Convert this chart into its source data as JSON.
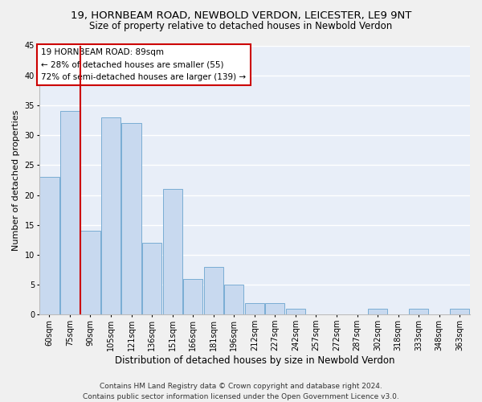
{
  "title1": "19, HORNBEAM ROAD, NEWBOLD VERDON, LEICESTER, LE9 9NT",
  "title2": "Size of property relative to detached houses in Newbold Verdon",
  "xlabel": "Distribution of detached houses by size in Newbold Verdon",
  "ylabel": "Number of detached properties",
  "footer1": "Contains HM Land Registry data © Crown copyright and database right 2024.",
  "footer2": "Contains public sector information licensed under the Open Government Licence v3.0.",
  "annotation_title": "19 HORNBEAM ROAD: 89sqm",
  "annotation_line2": "← 28% of detached houses are smaller (55)",
  "annotation_line3": "72% of semi-detached houses are larger (139) →",
  "bar_labels": [
    "60sqm",
    "75sqm",
    "90sqm",
    "105sqm",
    "121sqm",
    "136sqm",
    "151sqm",
    "166sqm",
    "181sqm",
    "196sqm",
    "212sqm",
    "227sqm",
    "242sqm",
    "257sqm",
    "272sqm",
    "287sqm",
    "302sqm",
    "318sqm",
    "333sqm",
    "348sqm",
    "363sqm"
  ],
  "bar_values": [
    23,
    34,
    14,
    33,
    32,
    12,
    21,
    6,
    8,
    5,
    2,
    2,
    1,
    0,
    0,
    0,
    1,
    0,
    1,
    0,
    1
  ],
  "bar_color": "#c8d9ef",
  "bar_edge_color": "#7aadd4",
  "red_line_x": 1.5,
  "ylim": [
    0,
    45
  ],
  "yticks": [
    0,
    5,
    10,
    15,
    20,
    25,
    30,
    35,
    40,
    45
  ],
  "bg_color": "#e8eef8",
  "grid_color": "#ffffff",
  "fig_color": "#f0f0f0",
  "annotation_box_color": "#ffffff",
  "annotation_box_edge": "#cc0000",
  "red_line_color": "#cc0000",
  "title_fontsize": 9.5,
  "subtitle_fontsize": 8.5,
  "ylabel_fontsize": 8,
  "xlabel_fontsize": 8.5,
  "tick_fontsize": 7,
  "footer_fontsize": 6.5,
  "ann_fontsize": 7.5
}
